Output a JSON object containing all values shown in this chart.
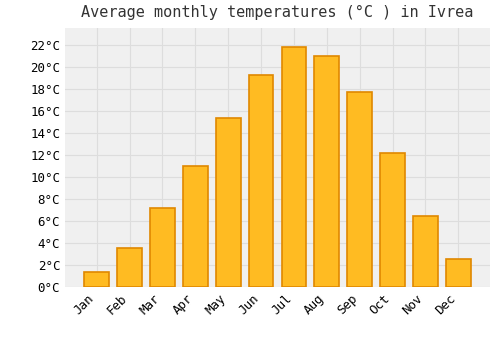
{
  "title": "Average monthly temperatures (°C ) in Ivrea",
  "months": [
    "Jan",
    "Feb",
    "Mar",
    "Apr",
    "May",
    "Jun",
    "Jul",
    "Aug",
    "Sep",
    "Oct",
    "Nov",
    "Dec"
  ],
  "values": [
    1.4,
    3.5,
    7.2,
    11.0,
    15.3,
    19.2,
    21.8,
    21.0,
    17.7,
    12.2,
    6.4,
    2.5
  ],
  "bar_color": "#FFBB22",
  "bar_edge_color": "#E08800",
  "background_color": "#FFFFFF",
  "plot_bg_color": "#F0F0F0",
  "grid_color": "#DDDDDD",
  "text_color": "#333333",
  "ylim": [
    0,
    23.5
  ],
  "yticks": [
    0,
    2,
    4,
    6,
    8,
    10,
    12,
    14,
    16,
    18,
    20,
    22
  ],
  "title_fontsize": 11,
  "tick_fontsize": 9,
  "bar_width": 0.75
}
